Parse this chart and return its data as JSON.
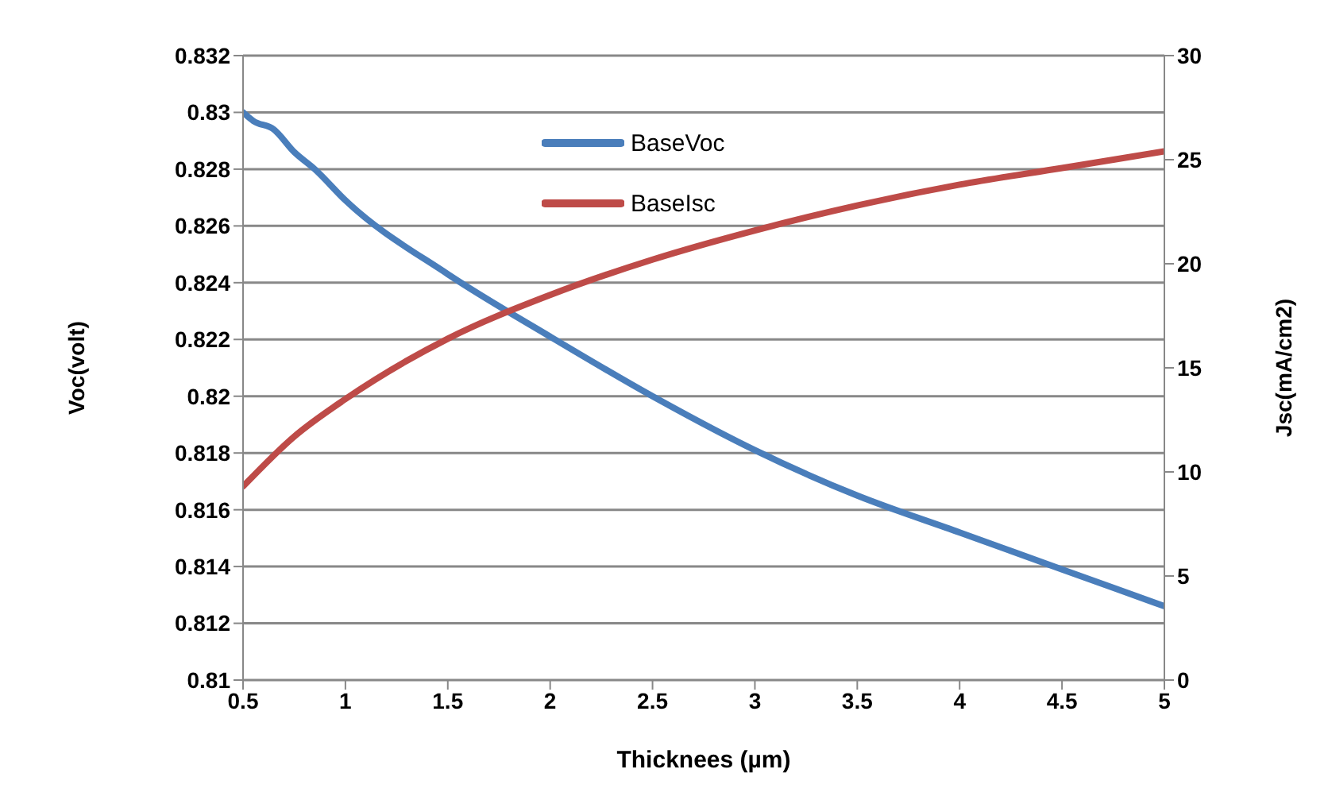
{
  "chart_data": {
    "type": "line",
    "xlabel": "Thicknees (µm)",
    "ylabel": "Voc(volt)",
    "y2label": "Jsc(mA/cm2)",
    "xlim": [
      0.5,
      5
    ],
    "xticks": [
      0.5,
      1,
      1.5,
      2,
      2.5,
      3,
      3.5,
      4,
      4.5,
      5
    ],
    "ylim": [
      0.81,
      0.832
    ],
    "yticks": [
      0.81,
      0.812,
      0.814,
      0.816,
      0.818,
      0.82,
      0.822,
      0.824,
      0.826,
      0.828,
      0.83,
      0.832
    ],
    "y2lim": [
      0,
      30
    ],
    "y2ticks": [
      0,
      5,
      10,
      15,
      20,
      25,
      30
    ],
    "grid": "y",
    "legend": "top",
    "marker": "none",
    "line_style": "solid",
    "series": [
      {
        "name": "BaseVoc",
        "color": "#4a7ebb",
        "x": [
          0.5,
          0.55,
          0.65,
          0.75,
          0.85,
          1,
          1.5,
          2,
          2.5,
          3,
          3.5,
          4,
          4.5,
          5
        ],
        "values": [
          0.83,
          0.8297,
          0.8294,
          0.8286,
          0.828,
          0.8269,
          0.8243,
          0.8221,
          0.82,
          0.8181,
          0.8165,
          0.8152,
          0.8139,
          0.8126
        ]
      },
      {
        "name": "BaseIsc",
        "color": "#be4b48",
        "axis": "y2",
        "x": [
          0.5,
          0.75,
          1,
          1.5,
          2,
          2.5,
          3,
          3.5,
          4,
          4.5,
          5
        ],
        "values": [
          9.3,
          11.7,
          13.5,
          16.4,
          18.5,
          20.2,
          21.6,
          22.8,
          23.8,
          24.6,
          25.4
        ]
      }
    ]
  }
}
